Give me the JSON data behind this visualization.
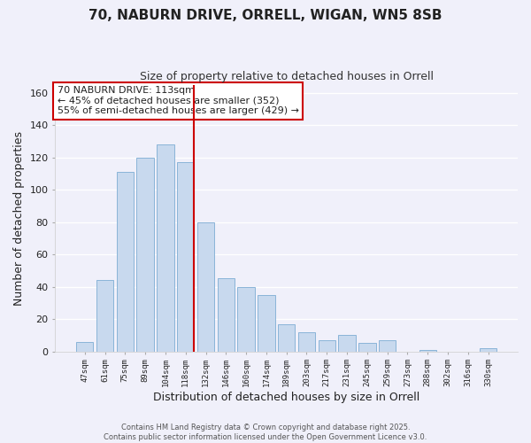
{
  "title": "70, NABURN DRIVE, ORRELL, WIGAN, WN5 8SB",
  "subtitle": "Size of property relative to detached houses in Orrell",
  "xlabel": "Distribution of detached houses by size in Orrell",
  "ylabel": "Number of detached properties",
  "categories": [
    "47sqm",
    "61sqm",
    "75sqm",
    "89sqm",
    "104sqm",
    "118sqm",
    "132sqm",
    "146sqm",
    "160sqm",
    "174sqm",
    "189sqm",
    "203sqm",
    "217sqm",
    "231sqm",
    "245sqm",
    "259sqm",
    "273sqm",
    "288sqm",
    "302sqm",
    "316sqm",
    "330sqm"
  ],
  "values": [
    6,
    44,
    111,
    120,
    128,
    117,
    80,
    45,
    40,
    35,
    17,
    12,
    7,
    10,
    5,
    7,
    0,
    1,
    0,
    0,
    2
  ],
  "bar_color": "#c8d9ee",
  "bar_edge_color": "#8ab4d8",
  "vline_color": "#cc0000",
  "annotation_text": "70 NABURN DRIVE: 113sqm\n← 45% of detached houses are smaller (352)\n55% of semi-detached houses are larger (429) →",
  "annotation_box_color": "#ffffff",
  "annotation_box_edge": "#cc0000",
  "ylim": [
    0,
    165
  ],
  "yticks": [
    0,
    20,
    40,
    60,
    80,
    100,
    120,
    140,
    160
  ],
  "footer": "Contains HM Land Registry data © Crown copyright and database right 2025.\nContains public sector information licensed under the Open Government Licence v3.0.",
  "bg_color": "#f0f0fa",
  "grid_color": "#ffffff",
  "vline_bar_index": 5
}
